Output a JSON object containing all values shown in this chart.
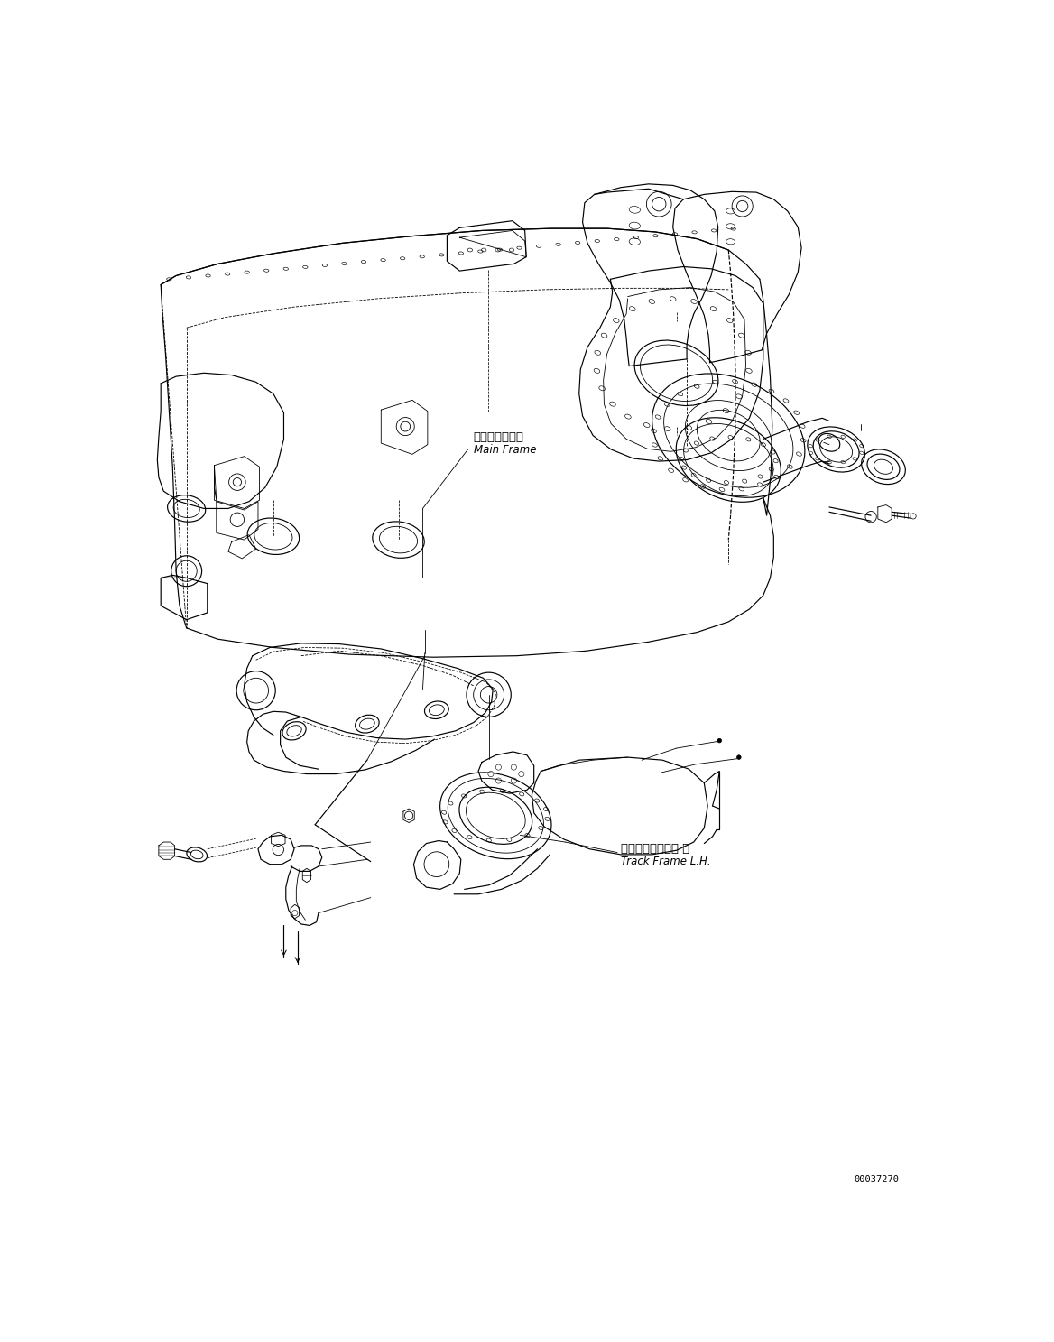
{
  "label_main_frame_jp": "メインフレーム",
  "label_main_frame_en": "Main Frame",
  "label_track_frame_jp": "トラックフレーム 左",
  "label_track_frame_en": "Track Frame L.H.",
  "doc_number": "00037270",
  "background_color": "#ffffff"
}
